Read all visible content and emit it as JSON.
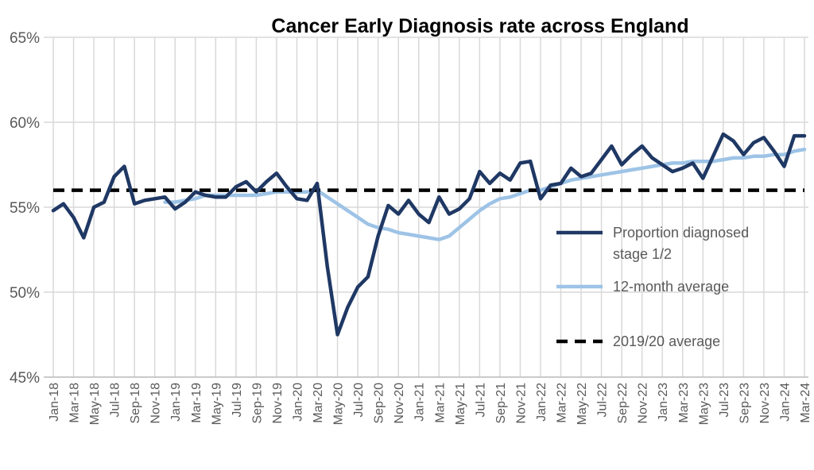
{
  "chart_data": {
    "type": "line",
    "title": "Cancer Early Diagnosis rate across England",
    "xlabel": "",
    "ylabel": "",
    "ylim": [
      45,
      65
    ],
    "yticks": [
      "45%",
      "50%",
      "55%",
      "60%",
      "65%"
    ],
    "ytick_values": [
      45,
      50,
      55,
      60,
      65
    ],
    "grid": true,
    "legend_placement": "right",
    "categories": [
      "Jan-18",
      "Feb-18",
      "Mar-18",
      "Apr-18",
      "May-18",
      "Jun-18",
      "Jul-18",
      "Aug-18",
      "Sep-18",
      "Oct-18",
      "Nov-18",
      "Dec-18",
      "Jan-19",
      "Feb-19",
      "Mar-19",
      "Apr-19",
      "May-19",
      "Jun-19",
      "Jul-19",
      "Aug-19",
      "Sep-19",
      "Oct-19",
      "Nov-19",
      "Dec-19",
      "Jan-20",
      "Feb-20",
      "Mar-20",
      "Apr-20",
      "May-20",
      "Jun-20",
      "Jul-20",
      "Aug-20",
      "Sep-20",
      "Oct-20",
      "Nov-20",
      "Dec-20",
      "Jan-21",
      "Feb-21",
      "Mar-21",
      "Apr-21",
      "May-21",
      "Jun-21",
      "Jul-21",
      "Aug-21",
      "Sep-21",
      "Oct-21",
      "Nov-21",
      "Dec-21",
      "Jan-22",
      "Feb-22",
      "Mar-22",
      "Apr-22",
      "May-22",
      "Jun-22",
      "Jul-22",
      "Aug-22",
      "Sep-22",
      "Oct-22",
      "Nov-22",
      "Dec-22",
      "Jan-23",
      "Feb-23",
      "Mar-23",
      "Apr-23",
      "May-23",
      "Jun-23",
      "Jul-23",
      "Aug-23",
      "Sep-23",
      "Oct-23",
      "Nov-23",
      "Dec-23",
      "Jan-24",
      "Feb-24",
      "Mar-24"
    ],
    "series": [
      {
        "name": "Proportion diagnosed stage 1/2",
        "color": "#1f3864",
        "style": "solid",
        "values": [
          54.8,
          55.2,
          54.4,
          53.2,
          55.0,
          55.3,
          56.8,
          57.4,
          55.2,
          55.4,
          55.5,
          55.6,
          54.9,
          55.3,
          55.9,
          55.7,
          55.6,
          55.6,
          56.2,
          56.5,
          55.9,
          56.5,
          57.0,
          56.2,
          55.5,
          55.4,
          56.4,
          51.5,
          47.5,
          49.1,
          50.3,
          50.9,
          53.3,
          55.1,
          54.6,
          55.4,
          54.6,
          54.1,
          55.6,
          54.6,
          54.9,
          55.5,
          57.1,
          56.4,
          57.0,
          56.6,
          57.6,
          57.7,
          55.5,
          56.3,
          56.4,
          57.3,
          56.8,
          57.0,
          57.8,
          58.6,
          57.5,
          58.1,
          58.6,
          57.9,
          57.5,
          57.1,
          57.3,
          57.6,
          56.7,
          58.0,
          59.3,
          58.9,
          58.1,
          58.8,
          59.1,
          58.3,
          57.4,
          59.2,
          59.2
        ]
      },
      {
        "name": "12-month average",
        "color": "#9dc3e6",
        "style": "solid",
        "values": [
          null,
          null,
          null,
          null,
          null,
          null,
          null,
          null,
          null,
          null,
          null,
          55.3,
          55.3,
          55.4,
          55.5,
          55.7,
          55.7,
          55.7,
          55.7,
          55.7,
          55.7,
          55.8,
          55.9,
          55.9,
          55.9,
          55.9,
          56.0,
          55.6,
          55.2,
          54.8,
          54.4,
          54.0,
          53.8,
          53.7,
          53.5,
          53.4,
          53.3,
          53.2,
          53.1,
          53.3,
          53.8,
          54.3,
          54.8,
          55.2,
          55.5,
          55.6,
          55.8,
          56.0,
          56.0,
          56.2,
          56.4,
          56.6,
          56.7,
          56.8,
          56.9,
          57.0,
          57.1,
          57.2,
          57.3,
          57.4,
          57.5,
          57.6,
          57.6,
          57.7,
          57.7,
          57.7,
          57.8,
          57.9,
          57.9,
          58.0,
          58.0,
          58.1,
          58.1,
          58.3,
          58.4
        ]
      },
      {
        "name": "2019/20 average",
        "color": "#000000",
        "style": "dashed",
        "value": 56.0
      }
    ],
    "legend": [
      "Proportion diagnosed",
      "stage 1/2",
      "12-month average",
      "2019/20 average"
    ]
  }
}
